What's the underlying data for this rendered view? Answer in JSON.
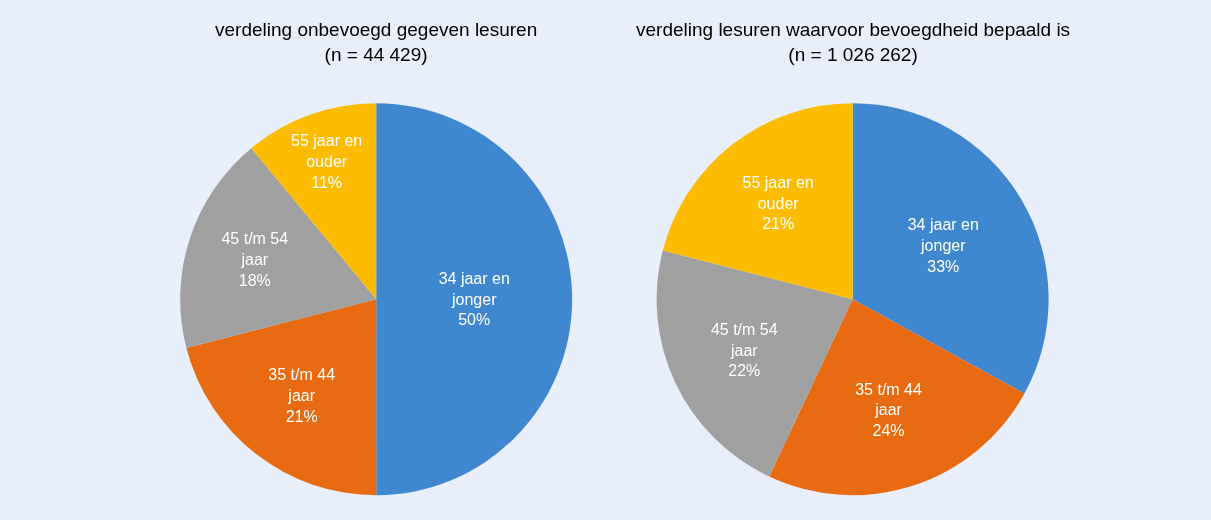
{
  "chart_data": [
    {
      "type": "pie",
      "title": "verdeling onbevoegd gegeven lesuren\n(n = 44 429)",
      "categories": [
        "34 jaar en jonger",
        "35 t/m 44 jaar",
        "45 t/m 54 jaar",
        "55 jaar en ouder"
      ],
      "values": [
        50,
        21,
        18,
        11
      ],
      "value_labels": [
        "50%",
        "21%",
        "18%",
        "11%"
      ],
      "colors": [
        "#3f88cf",
        "#e86b12",
        "#a0a0a0",
        "#fdbc00"
      ],
      "legend": false
    },
    {
      "type": "pie",
      "title": "verdeling lesuren waarvoor bevoegdheid bepaald is\n(n = 1 026 262)",
      "categories": [
        "34 jaar en jonger",
        "35 t/m 44 jaar",
        "45 t/m 54 jaar",
        "55 jaar en ouder"
      ],
      "values": [
        33,
        24,
        22,
        21
      ],
      "value_labels": [
        "33%",
        "24%",
        "22%",
        "21%"
      ],
      "colors": [
        "#3f88cf",
        "#e86b12",
        "#a0a0a0",
        "#fdbc00"
      ],
      "legend": false
    }
  ]
}
